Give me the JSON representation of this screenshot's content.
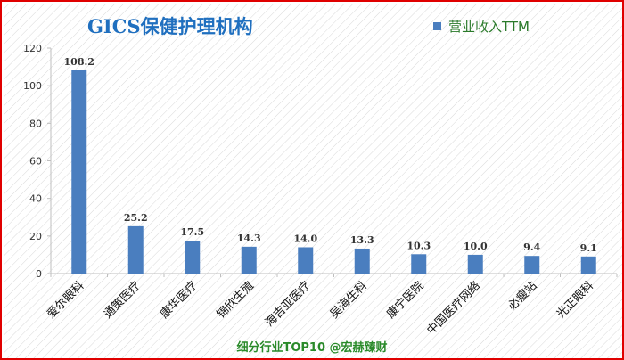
{
  "chart_data": {
    "type": "bar",
    "title": "GICS保健护理机构",
    "xlabel": "",
    "ylabel": "",
    "ylim": [
      0,
      120
    ],
    "yticks": [
      0,
      20,
      40,
      60,
      80,
      100,
      120
    ],
    "grid": false,
    "legend_position": "top-right",
    "categories": [
      "爱尔眼科",
      "通策医疗",
      "康华医疗",
      "锦欣生殖",
      "海吉亚医疗",
      "吴海生科",
      "康宁医院",
      "中国医疗网络",
      "必瘦站",
      "光正眼科"
    ],
    "series": [
      {
        "name": "营业收入TTM",
        "values": [
          108.2,
          25.2,
          17.5,
          14.3,
          14.0,
          13.3,
          10.3,
          10.0,
          9.4,
          9.1
        ]
      }
    ],
    "data_labels": [
      "108.2",
      "25.2",
      "17.5",
      "14.3",
      "14.0",
      "13.3",
      "10.3",
      "10.0",
      "9.4",
      "9.1"
    ]
  },
  "colors": {
    "bar": "#4a7ebf",
    "title": "#1f6fbf",
    "legend_text": "#2a7a2a",
    "footer": "#2a8a2a",
    "border": "#e00000"
  },
  "footer": {
    "text": "细分行业TOP10 @宏赫臻财"
  }
}
